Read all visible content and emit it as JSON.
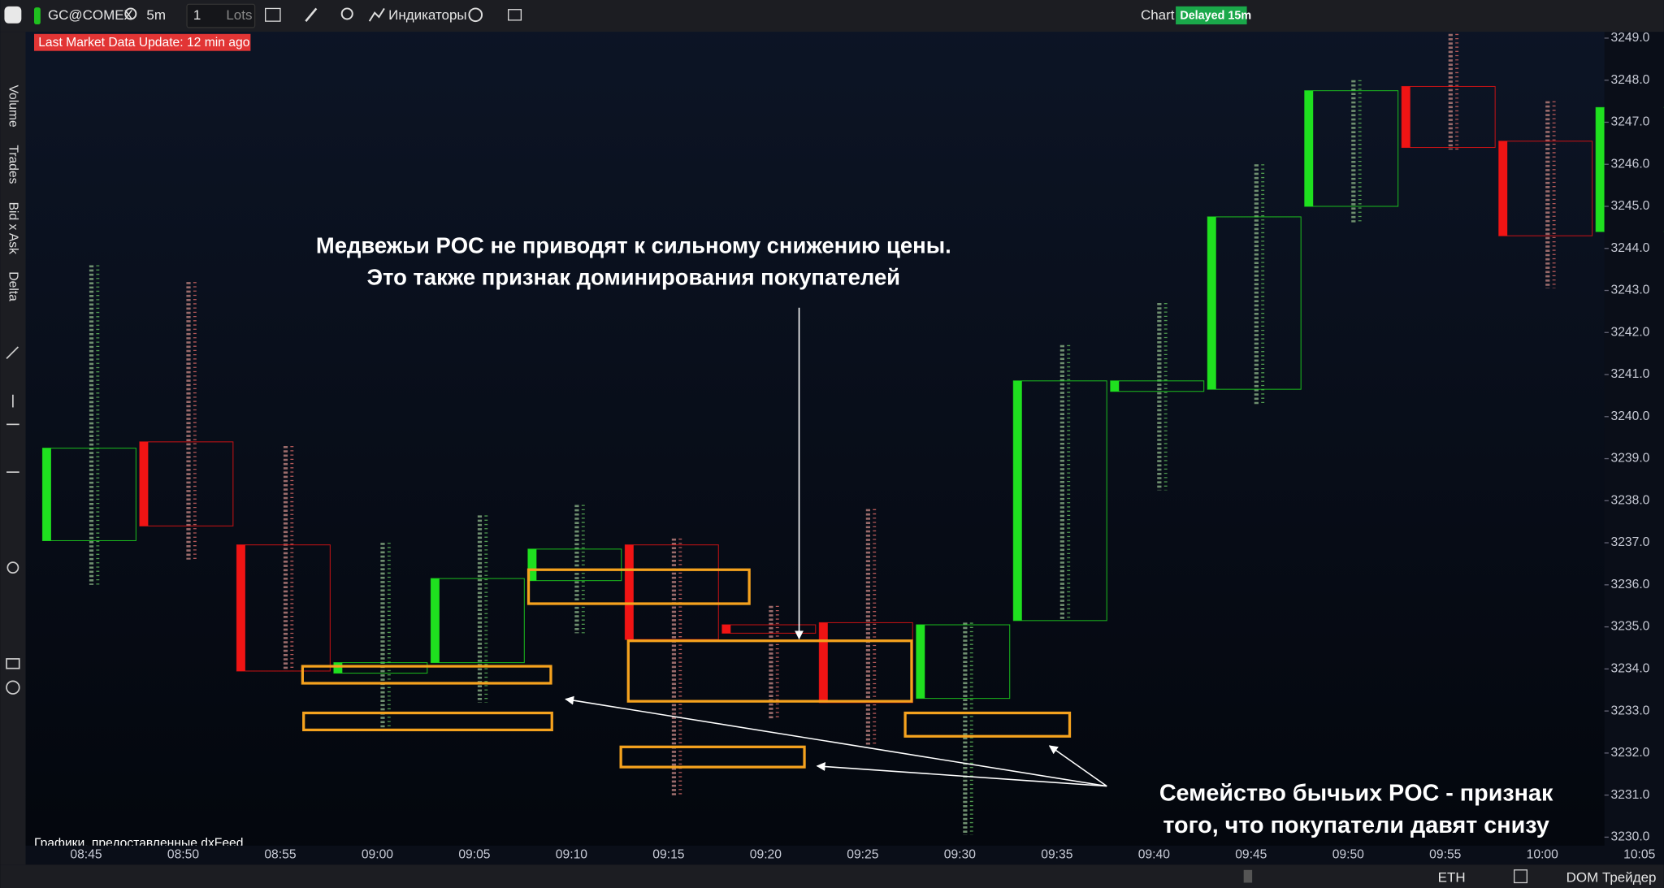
{
  "toolbar": {
    "symbol": "GC@COMEX",
    "interval": "5m",
    "quantity": 1,
    "unit": "Lots",
    "indicators": "Индикаторы",
    "chart": "Chart",
    "delay": "Delayed 15m"
  },
  "banner": "Last Market Data Update: 12 min ago",
  "side_panels": [
    "Volume",
    "Trades",
    "Bid x Ask",
    "Delta"
  ],
  "chart_data": {
    "type": "candlestick",
    "categories": [
      "08:45",
      "08:50",
      "08:55",
      "09:00",
      "09:05",
      "09:10",
      "09:15",
      "09:20",
      "09:25",
      "09:30",
      "09:35",
      "09:40",
      "09:45",
      "09:50",
      "09:55",
      "10:00",
      "10:05"
    ],
    "open": [
      3237.05,
      3239.4,
      3236.95,
      3233.9,
      3234.15,
      3236.1,
      3236.95,
      3235.05,
      3235.1,
      3233.3,
      3235.15,
      3240.6,
      3240.65,
      3245.0,
      3247.85,
      3246.55,
      3244.4
    ],
    "high": [
      3243.6,
      3243.2,
      3239.3,
      3237.0,
      3237.65,
      3237.9,
      3237.1,
      3235.5,
      3237.8,
      3235.1,
      3241.7,
      3242.7,
      3246.0,
      3248.0,
      3249.1,
      3247.5,
      3247.35
    ],
    "low": [
      3236.0,
      3236.6,
      3233.95,
      3232.55,
      3233.2,
      3234.85,
      3230.95,
      3232.8,
      3232.2,
      3230.05,
      3235.15,
      3238.25,
      3240.3,
      3244.6,
      3246.35,
      3243.05,
      3244.4
    ],
    "close": [
      3239.25,
      3237.4,
      3233.95,
      3234.15,
      3236.15,
      3236.85,
      3234.7,
      3234.85,
      3233.2,
      3235.05,
      3240.85,
      3240.85,
      3244.75,
      3247.75,
      3246.4,
      3244.3,
      3247.35
    ],
    "up_color": "#1fe01f",
    "down_color": "#f01414",
    "ylim": [
      3229.8,
      3249.15
    ],
    "yticks": [
      {
        "value": 3230,
        "label": "3230.0"
      },
      {
        "value": 3231,
        "label": "3231.0"
      },
      {
        "value": 3232,
        "label": "3232.0"
      },
      {
        "value": 3233,
        "label": "3233.0"
      },
      {
        "value": 3234,
        "label": "3234.0"
      },
      {
        "value": 3235,
        "label": "3235.0"
      },
      {
        "value": 3236,
        "label": "3236.0"
      },
      {
        "value": 3237,
        "label": "3237.0"
      },
      {
        "value": 3238,
        "label": "3238.0"
      },
      {
        "value": 3239,
        "label": "3239.0"
      },
      {
        "value": 3240,
        "label": "3240.0"
      },
      {
        "value": 3241,
        "label": "3241.0"
      },
      {
        "value": 3242,
        "label": "3242.0"
      },
      {
        "value": 3243,
        "label": "3243.0"
      },
      {
        "value": 3244,
        "label": "3244.0"
      },
      {
        "value": 3245,
        "label": "3245.0"
      },
      {
        "value": 3246,
        "label": "3246.0"
      },
      {
        "value": 3247,
        "label": "3247.0"
      },
      {
        "value": 3248,
        "label": "3248.0"
      },
      {
        "value": 3249,
        "label": "3249.0"
      }
    ]
  },
  "annotations": {
    "bearish_poc": [
      "Медвежьи POC не приводят к сильному снижению цены.",
      "Это также признак доминирования покупателей"
    ],
    "bullish_poc": [
      "Семейство бычьих POC - признак",
      "того, что покупатели давят снизу"
    ]
  },
  "credit": "Графики, предоставленные dxFeed",
  "status_bar": {
    "session": "ETH",
    "dom": "DOM Трейдер"
  }
}
